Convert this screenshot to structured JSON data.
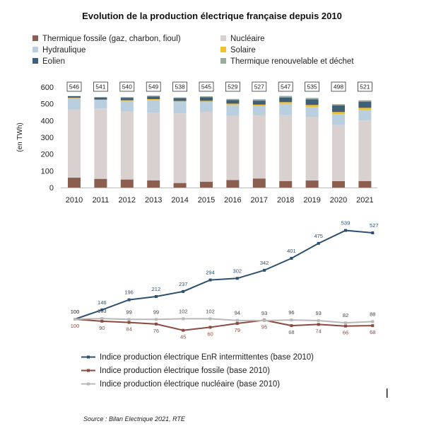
{
  "source": "Source : Bilan Electrique 2021, RTE",
  "chart_data": [
    {
      "type": "bar",
      "stacked": true,
      "title": "Evolution de la production électrique française depuis 2010",
      "ylabel": "(en TWh)",
      "ylim": [
        0,
        600
      ],
      "yticks": [
        "0",
        "100",
        "200",
        "300",
        "400",
        "500",
        "600"
      ],
      "grid": false,
      "legend_position": "top",
      "categories": [
        "2010",
        "2011",
        "2012",
        "2013",
        "2014",
        "2015",
        "2016",
        "2017",
        "2018",
        "2019",
        "2020",
        "2021"
      ],
      "totals": [
        "546",
        "541",
        "540",
        "549",
        "538",
        "545",
        "529",
        "527",
        "547",
        "535",
        "498",
        "521"
      ],
      "series": [
        {
          "name": "Thermique fossile (gaz, charbon, fioul)",
          "color": "#8b5e4f",
          "values": [
            59,
            52,
            48,
            43,
            27,
            35,
            45,
            54,
            39,
            42,
            38,
            39
          ]
        },
        {
          "name": "Nucléaire",
          "color": "#d8d1d0",
          "values": [
            408,
            421,
            405,
            404,
            416,
            417,
            384,
            379,
            393,
            379,
            335,
            361
          ]
        },
        {
          "name": "Hydraulique",
          "color": "#b9cfe0",
          "values": [
            68,
            50,
            64,
            76,
            68,
            59,
            64,
            53,
            68,
            60,
            65,
            62
          ]
        },
        {
          "name": "Solaire",
          "color": "#f2c12e",
          "values": [
            1,
            2,
            4,
            5,
            6,
            7,
            8,
            9,
            10,
            12,
            13,
            14
          ]
        },
        {
          "name": "Eolien",
          "color": "#3f5f76",
          "values": [
            10,
            12,
            15,
            16,
            17,
            21,
            21,
            24,
            28,
            34,
            40,
            37
          ]
        },
        {
          "name": "Thermique renouvelable et déchet",
          "color": "#98ad9e",
          "values": [
            0,
            4,
            4,
            5,
            4,
            6,
            7,
            8,
            9,
            8,
            7,
            8
          ]
        }
      ]
    },
    {
      "type": "line",
      "x": [
        "2010",
        "2011",
        "2012",
        "2013",
        "2014",
        "2015",
        "2016",
        "2017",
        "2018",
        "2019",
        "2020",
        "2021"
      ],
      "series": [
        {
          "name": "Indice production électrique EnR intermittentes (base 2010)",
          "color": "#2e5070",
          "values": [
            100,
            146,
            196,
            212,
            237,
            294,
            302,
            342,
            401,
            475,
            539,
            527
          ]
        },
        {
          "name": "Indice production électrique fossile (base 2010)",
          "color": "#8b4a3e",
          "values": [
            100,
            90,
            84,
            76,
            45,
            60,
            79,
            95,
            68,
            74,
            66,
            68
          ]
        },
        {
          "name": "Indice production électrique nucléaire (base 2010)",
          "color": "#b8b8b8",
          "values": [
            100,
            103,
            99,
            99,
            102,
            102,
            94,
            93,
            96,
            93,
            82,
            88
          ]
        }
      ]
    }
  ]
}
